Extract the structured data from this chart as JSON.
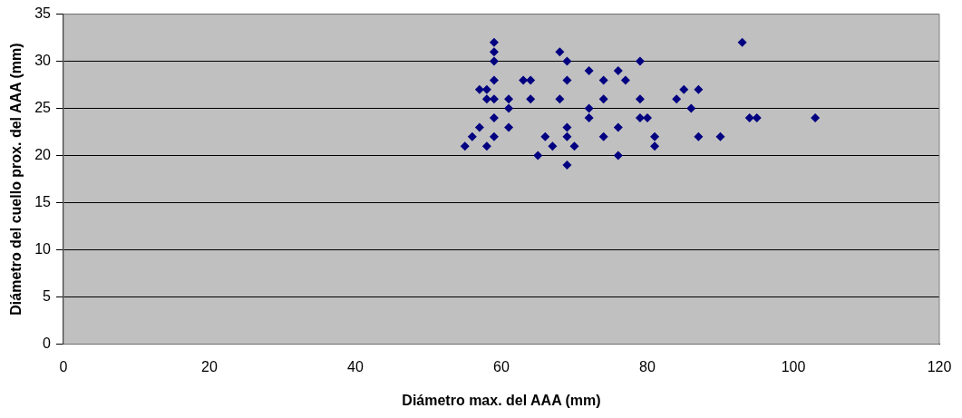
{
  "chart_data": {
    "type": "scatter",
    "xlabel": "Diámetro max. del AAA (mm)",
    "ylabel": "Diámetro del cuello prox. del AAA (mm)",
    "x": [
      55,
      56,
      57,
      57,
      58,
      58,
      58,
      59,
      59,
      59,
      59,
      59,
      59,
      59,
      61,
      61,
      61,
      63,
      64,
      64,
      65,
      66,
      67,
      68,
      68,
      69,
      69,
      69,
      69,
      69,
      70,
      72,
      72,
      72,
      74,
      74,
      74,
      76,
      76,
      76,
      77,
      79,
      79,
      79,
      80,
      81,
      81,
      84,
      85,
      86,
      87,
      87,
      90,
      93,
      94,
      95,
      103
    ],
    "series": [
      {
        "color": "#000080",
        "values": [
          21,
          22,
          23,
          27,
          26,
          27,
          21,
          32,
          31,
          30,
          28,
          26,
          24,
          22,
          26,
          25,
          23,
          28,
          28,
          26,
          20,
          22,
          21,
          31,
          26,
          30,
          28,
          23,
          22,
          19,
          21,
          29,
          25,
          24,
          28,
          26,
          22,
          29,
          23,
          20,
          28,
          30,
          26,
          24,
          24,
          22,
          21,
          26,
          27,
          25,
          27,
          22,
          22,
          32,
          24,
          24,
          24
        ]
      }
    ],
    "xlim": [
      0,
      120
    ],
    "xticks": [
      0,
      20,
      40,
      60,
      80,
      100,
      120
    ],
    "ylim": [
      0,
      35
    ],
    "yticks": [
      0,
      5,
      10,
      15,
      20,
      25,
      30,
      35
    ],
    "grid": "y",
    "legend": false,
    "marker": "diamond"
  }
}
